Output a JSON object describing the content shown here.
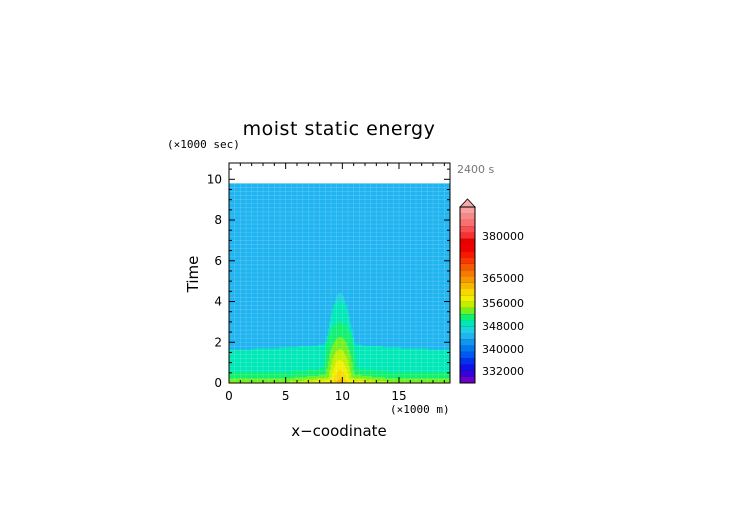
{
  "chart_data": {
    "type": "heatmap",
    "title": "moist static energy",
    "xlabel": "x−coodinate",
    "ylabel": "Time",
    "x_unit": "(×1000 m)",
    "y_unit": "(×1000 sec)",
    "time_label": "2400 s",
    "xlim": [
      0,
      19.5
    ],
    "ylim": [
      0,
      10.8
    ],
    "data_ylim": [
      0,
      9.8
    ],
    "x_ticks": [
      0,
      5,
      10,
      15
    ],
    "y_ticks": [
      0,
      2,
      4,
      6,
      8,
      10
    ],
    "grid": true,
    "colorbar": {
      "levels": [
        326000,
        328000,
        330000,
        332000,
        334000,
        336000,
        338000,
        340000,
        342000,
        344000,
        346000,
        348000,
        350000,
        352000,
        354000,
        356000,
        359000,
        362000,
        365000,
        368000,
        371000,
        374000,
        377000,
        380000,
        383000,
        386000,
        389000,
        392000
      ],
      "colors": [
        "#6a00c8",
        "#3a00d8",
        "#1010e8",
        "#0030f0",
        "#0058f0",
        "#0078f0",
        "#1096f0",
        "#20b4f0",
        "#20d0e0",
        "#00e8b8",
        "#10f070",
        "#70f020",
        "#c0f000",
        "#f0f000",
        "#f8d800",
        "#f8b800",
        "#f89800",
        "#f87800",
        "#f85800",
        "#f83800",
        "#f81800",
        "#f00000",
        "#e80000",
        "#f83030",
        "#f85050",
        "#f87070",
        "#f88888",
        "#f8a0a0"
      ],
      "labels": [
        "332000",
        "340000",
        "348000",
        "356000",
        "365000",
        "380000"
      ]
    },
    "field": {
      "background": 341000,
      "surface_peak": 357000,
      "surface_edge": 351000,
      "lower_layer": 345000,
      "plume_center": 9.8,
      "plume_top": 4.3
    }
  }
}
